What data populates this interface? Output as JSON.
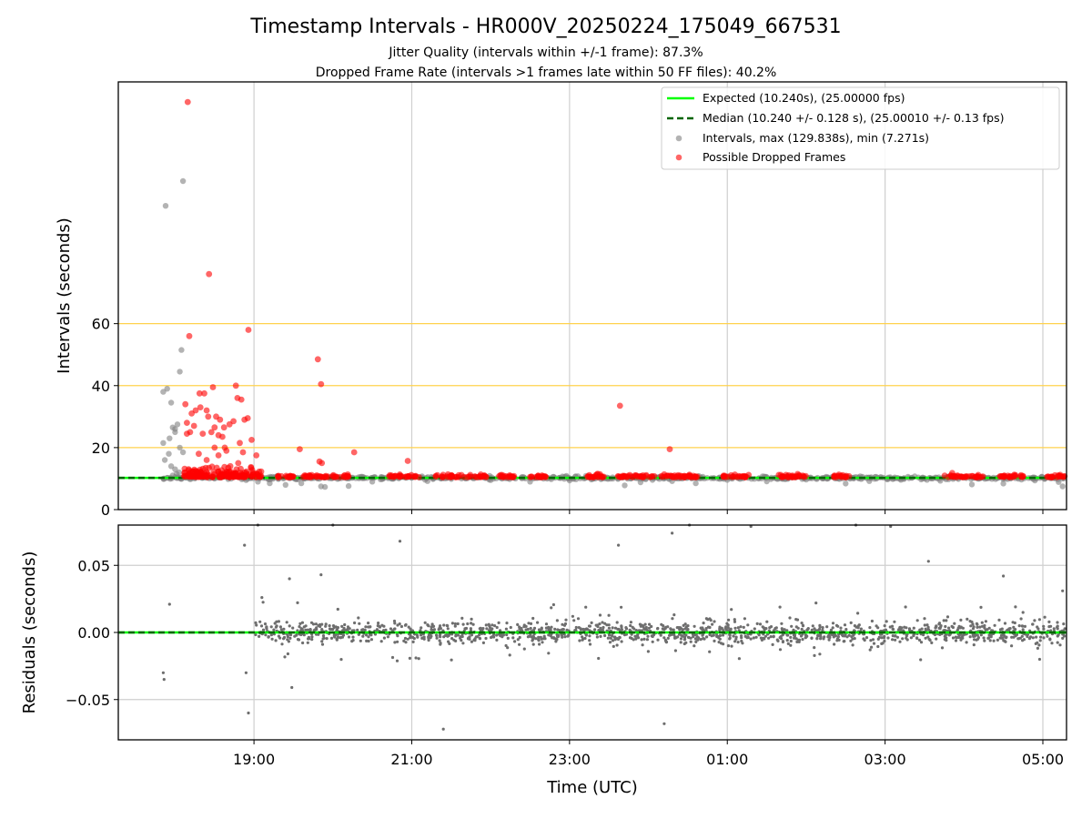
{
  "colors": {
    "expected": "#00ff00",
    "median": "#006400",
    "intervals": "#808080",
    "dropped": "#ff0000",
    "threshold": "#ffd24d",
    "residuals": "#6e6e6e"
  },
  "chart_data": [
    {
      "type": "scatter",
      "title": "Timestamp Intervals - HR000V_20250224_175049_667531",
      "subtitle_1": "Jitter Quality (intervals within +/-1 frame): 87.3%",
      "subtitle_2": "Dropped Frame Rate (intervals >1 frames late within 50 FF files): 40.2%",
      "ylabel": "Intervals (seconds)",
      "ylim": [
        0,
        138
      ],
      "yticks": [
        "0",
        "20",
        "40",
        "60"
      ],
      "ytick_values": [
        0,
        20,
        40,
        60
      ],
      "threshold_lines": [
        20,
        40,
        60
      ],
      "x_range_hours": [
        17.28,
        29.3
      ],
      "grid": true,
      "legend": {
        "placement": "top-right",
        "entries": [
          "Expected (10.240s), (25.00000 fps)",
          "Median (10.240 +/- 0.128 s), (25.00010 +/- 0.13 fps)",
          "Intervals, max (129.838s), min (7.271s)",
          "Possible Dropped Frames"
        ]
      },
      "expected_interval": 10.24,
      "median_interval": 10.24,
      "series": [
        {
          "name": "Intervals, max (129.838s), min (7.271s)",
          "points": [
            [
              17.85,
              21.5
            ],
            [
              17.85,
              38
            ],
            [
              17.87,
              16
            ],
            [
              17.9,
              39
            ],
            [
              17.88,
              98
            ],
            [
              17.95,
              34.5
            ],
            [
              17.93,
              23
            ],
            [
              17.97,
              26.5
            ],
            [
              18.0,
              25
            ],
            [
              18.0,
              26
            ],
            [
              18.03,
              27.5
            ],
            [
              18.06,
              44.5
            ],
            [
              18.08,
              51.5
            ],
            [
              18.1,
              106
            ],
            [
              17.92,
              18
            ],
            [
              17.95,
              14
            ],
            [
              18.0,
              13
            ],
            [
              18.05,
              12
            ],
            [
              18.1,
              18.5
            ],
            [
              18.06,
              20
            ],
            [
              17.97,
              11
            ],
            [
              18.02,
              11.5
            ],
            [
              18.12,
              10.5
            ],
            [
              18.3,
              11
            ],
            [
              18.5,
              10
            ],
            [
              18.75,
              10.5
            ],
            [
              18.9,
              9.5
            ],
            [
              19.05,
              9
            ],
            [
              19.2,
              8.5
            ],
            [
              19.4,
              8
            ],
            [
              19.6,
              8.5
            ],
            [
              19.85,
              7.5
            ],
            [
              19.9,
              7.3
            ],
            [
              20.2,
              7.6
            ],
            [
              20.5,
              9
            ],
            [
              21.2,
              9.2
            ],
            [
              22.0,
              9.5
            ],
            [
              22.5,
              9
            ],
            [
              23.0,
              9.4
            ],
            [
              23.7,
              7.8
            ],
            [
              23.9,
              8.8
            ],
            [
              24.3,
              9.2
            ],
            [
              24.6,
              8.5
            ],
            [
              25.0,
              9.6
            ],
            [
              25.5,
              9.1
            ],
            [
              26.0,
              9.7
            ],
            [
              26.5,
              8.4
            ],
            [
              26.8,
              9.2
            ],
            [
              27.2,
              9.6
            ],
            [
              27.7,
              9.3
            ],
            [
              28.1,
              8.1
            ],
            [
              28.5,
              8.4
            ],
            [
              28.9,
              9.4
            ],
            [
              29.2,
              8.9
            ],
            [
              29.25,
              7.5
            ]
          ]
        },
        {
          "name": "Possible Dropped Frames",
          "points": [
            [
              18.16,
              131.5
            ],
            [
              18.43,
              76
            ],
            [
              18.18,
              56
            ],
            [
              18.93,
              58
            ],
            [
              19.81,
              48.5
            ],
            [
              19.85,
              40.5
            ],
            [
              18.31,
              37.5
            ],
            [
              18.37,
              37.5
            ],
            [
              18.4,
              32
            ],
            [
              18.48,
              39.5
            ],
            [
              18.13,
              34
            ],
            [
              18.77,
              40
            ],
            [
              18.79,
              36
            ],
            [
              18.84,
              35.5
            ],
            [
              18.21,
              31
            ],
            [
              18.26,
              32
            ],
            [
              18.32,
              33
            ],
            [
              18.42,
              30
            ],
            [
              18.52,
              30
            ],
            [
              18.57,
              29
            ],
            [
              18.62,
              26.5
            ],
            [
              18.69,
              27.5
            ],
            [
              18.74,
              28.5
            ],
            [
              18.88,
              29
            ],
            [
              18.92,
              29.5
            ],
            [
              18.15,
              28
            ],
            [
              18.19,
              25
            ],
            [
              18.24,
              27
            ],
            [
              18.35,
              24.5
            ],
            [
              18.46,
              25
            ],
            [
              18.5,
              26.5
            ],
            [
              18.55,
              24
            ],
            [
              18.6,
              23.5
            ],
            [
              18.82,
              21.5
            ],
            [
              18.97,
              22.5
            ],
            [
              18.15,
              24.5
            ],
            [
              18.63,
              20
            ],
            [
              18.5,
              20
            ],
            [
              18.3,
              18
            ],
            [
              18.4,
              16
            ],
            [
              18.55,
              17.5
            ],
            [
              18.65,
              19
            ],
            [
              18.86,
              18.5
            ],
            [
              19.03,
              17.5
            ],
            [
              18.7,
              14
            ],
            [
              18.8,
              15
            ],
            [
              19.58,
              19.5
            ],
            [
              19.83,
              15.5
            ],
            [
              19.86,
              15
            ],
            [
              20.27,
              18.5
            ],
            [
              20.95,
              15.7
            ],
            [
              23.64,
              33.5
            ],
            [
              24.27,
              19.5
            ]
          ]
        }
      ],
      "dropped_clusters": [
        [
          18.13,
          19.12
        ],
        [
          19.3,
          19.5
        ],
        [
          19.62,
          19.98
        ],
        [
          20.0,
          20.2
        ],
        [
          20.7,
          21.1
        ],
        [
          21.3,
          21.95
        ],
        [
          22.1,
          22.3
        ],
        [
          22.5,
          22.7
        ],
        [
          23.2,
          23.45
        ],
        [
          23.6,
          24.1
        ],
        [
          24.15,
          24.5
        ],
        [
          24.5,
          24.65
        ],
        [
          24.95,
          25.3
        ],
        [
          25.65,
          26.05
        ],
        [
          26.35,
          26.55
        ],
        [
          27.75,
          28.25
        ],
        [
          28.45,
          28.75
        ],
        [
          29.05,
          29.28
        ]
      ]
    },
    {
      "type": "scatter",
      "xlabel": "Time (UTC)",
      "ylabel": "Residuals (seconds)",
      "ylim": [
        -0.08,
        0.08
      ],
      "yticks": [
        "0.05",
        "0.00",
        "−0.05"
      ],
      "ytick_values": [
        0.05,
        0.0,
        -0.05
      ],
      "xticks": [
        "19:00",
        "21:00",
        "23:00",
        "01:00",
        "03:00",
        "05:00"
      ],
      "xtick_hours": [
        19,
        21,
        23,
        25,
        27,
        29
      ],
      "grid": true,
      "series": [
        {
          "name": "Residuals",
          "outliers": [
            [
              17.85,
              -0.03
            ],
            [
              17.86,
              -0.035
            ],
            [
              17.93,
              0.021
            ],
            [
              18.88,
              0.065
            ],
            [
              18.9,
              -0.03
            ],
            [
              18.93,
              -0.06
            ],
            [
              19.05,
              0.08
            ],
            [
              19.1,
              0.026
            ],
            [
              19.45,
              0.04
            ],
            [
              19.48,
              -0.041
            ],
            [
              19.85,
              0.043
            ],
            [
              20.0,
              0.08
            ],
            [
              20.85,
              0.068
            ],
            [
              21.4,
              -0.072
            ],
            [
              23.62,
              0.065
            ],
            [
              24.2,
              -0.068
            ],
            [
              24.3,
              0.074
            ],
            [
              24.52,
              0.08
            ],
            [
              25.3,
              0.079
            ],
            [
              26.63,
              0.08
            ],
            [
              27.07,
              0.079
            ],
            [
              27.55,
              0.053
            ],
            [
              28.5,
              0.042
            ],
            [
              29.25,
              0.031
            ]
          ]
        }
      ]
    }
  ]
}
